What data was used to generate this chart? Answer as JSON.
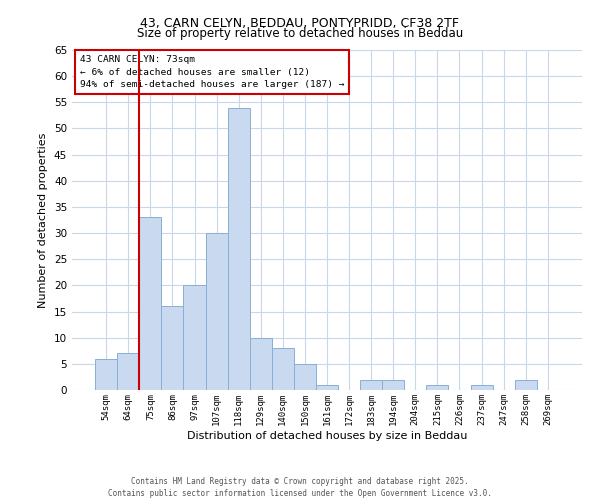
{
  "title_line1": "43, CARN CELYN, BEDDAU, PONTYPRIDD, CF38 2TF",
  "title_line2": "Size of property relative to detached houses in Beddau",
  "xlabel": "Distribution of detached houses by size in Beddau",
  "ylabel": "Number of detached properties",
  "bins": [
    "54sqm",
    "64sqm",
    "75sqm",
    "86sqm",
    "97sqm",
    "107sqm",
    "118sqm",
    "129sqm",
    "140sqm",
    "150sqm",
    "161sqm",
    "172sqm",
    "183sqm",
    "194sqm",
    "204sqm",
    "215sqm",
    "226sqm",
    "237sqm",
    "247sqm",
    "258sqm",
    "269sqm"
  ],
  "counts": [
    6,
    7,
    33,
    16,
    20,
    30,
    54,
    10,
    8,
    5,
    1,
    0,
    2,
    2,
    0,
    1,
    0,
    1,
    0,
    2,
    0
  ],
  "bar_color": "#c9d9f0",
  "bar_edge_color": "#8aafd4",
  "grid_color": "#c8d8e8",
  "background_color": "#ffffff",
  "vline_x_index": 2,
  "vline_color": "#cc0000",
  "annotation_title": "43 CARN CELYN: 73sqm",
  "annotation_line1": "← 6% of detached houses are smaller (12)",
  "annotation_line2": "94% of semi-detached houses are larger (187) →",
  "annotation_box_color": "#ffffff",
  "annotation_box_edge_color": "#cc0000",
  "ylim": [
    0,
    65
  ],
  "yticks": [
    0,
    5,
    10,
    15,
    20,
    25,
    30,
    35,
    40,
    45,
    50,
    55,
    60,
    65
  ],
  "footer_line1": "Contains HM Land Registry data © Crown copyright and database right 2025.",
  "footer_line2": "Contains public sector information licensed under the Open Government Licence v3.0."
}
